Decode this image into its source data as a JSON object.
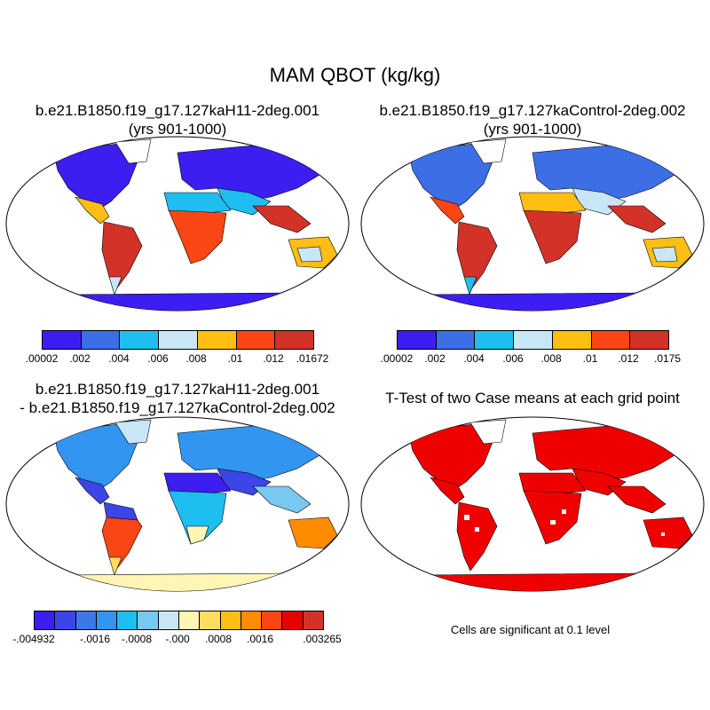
{
  "main_title": "MAM QBOT (kg/kg)",
  "panels": [
    {
      "title_line1": "b.e21.B1850.f19_g17.127kaH11-2deg.001",
      "title_line2": "(yrs 901-1000)"
    },
    {
      "title_line1": "b.e21.B1850.f19_g17.127kaControl-2deg.002",
      "title_line2": "(yrs 901-1000)"
    },
    {
      "title_line1": "b.e21.B1850.f19_g17.127kaH11-2deg.001",
      "title_line2": "- b.e21.B1850.f19_g17.127kaControl-2deg.002"
    },
    {
      "title_line1": "T-Test of two Case means at each grid point"
    }
  ],
  "colorbars": {
    "case1": {
      "colors": [
        "#3c1ef0",
        "#3c6ee6",
        "#1ebef0",
        "#c8e6f5",
        "#ffbe14",
        "#fa4614",
        "#d23228"
      ],
      "labels": [
        ".00002",
        ".002",
        ".004",
        ".006",
        ".008",
        ".01",
        ".012",
        ".01672"
      ]
    },
    "case2": {
      "colors": [
        "#3c1ef0",
        "#3c6ee6",
        "#1ebef0",
        "#c8e6f5",
        "#ffbe14",
        "#fa4614",
        "#d23228"
      ],
      "labels": [
        ".00002",
        ".002",
        ".004",
        ".006",
        ".008",
        ".01",
        ".012",
        ".0175"
      ]
    },
    "diff": {
      "colors": [
        "#3c1ef0",
        "#3c46e6",
        "#3c78e6",
        "#3296f0",
        "#1ebef0",
        "#78c8f0",
        "#c8e6f5",
        "#fff5b4",
        "#ffdc64",
        "#ffbe14",
        "#ff8c00",
        "#fa4614",
        "#e60000",
        "#d23228"
      ],
      "labels": [
        "-.004932",
        "-.0016",
        "-.0008",
        "-.000",
        ".0008",
        ".0016",
        ".003265"
      ]
    }
  },
  "significance_note": "Cells are significant at 0.1 level",
  "palette": {
    "ocean": "#ffffff",
    "significant": "#ee0000"
  }
}
